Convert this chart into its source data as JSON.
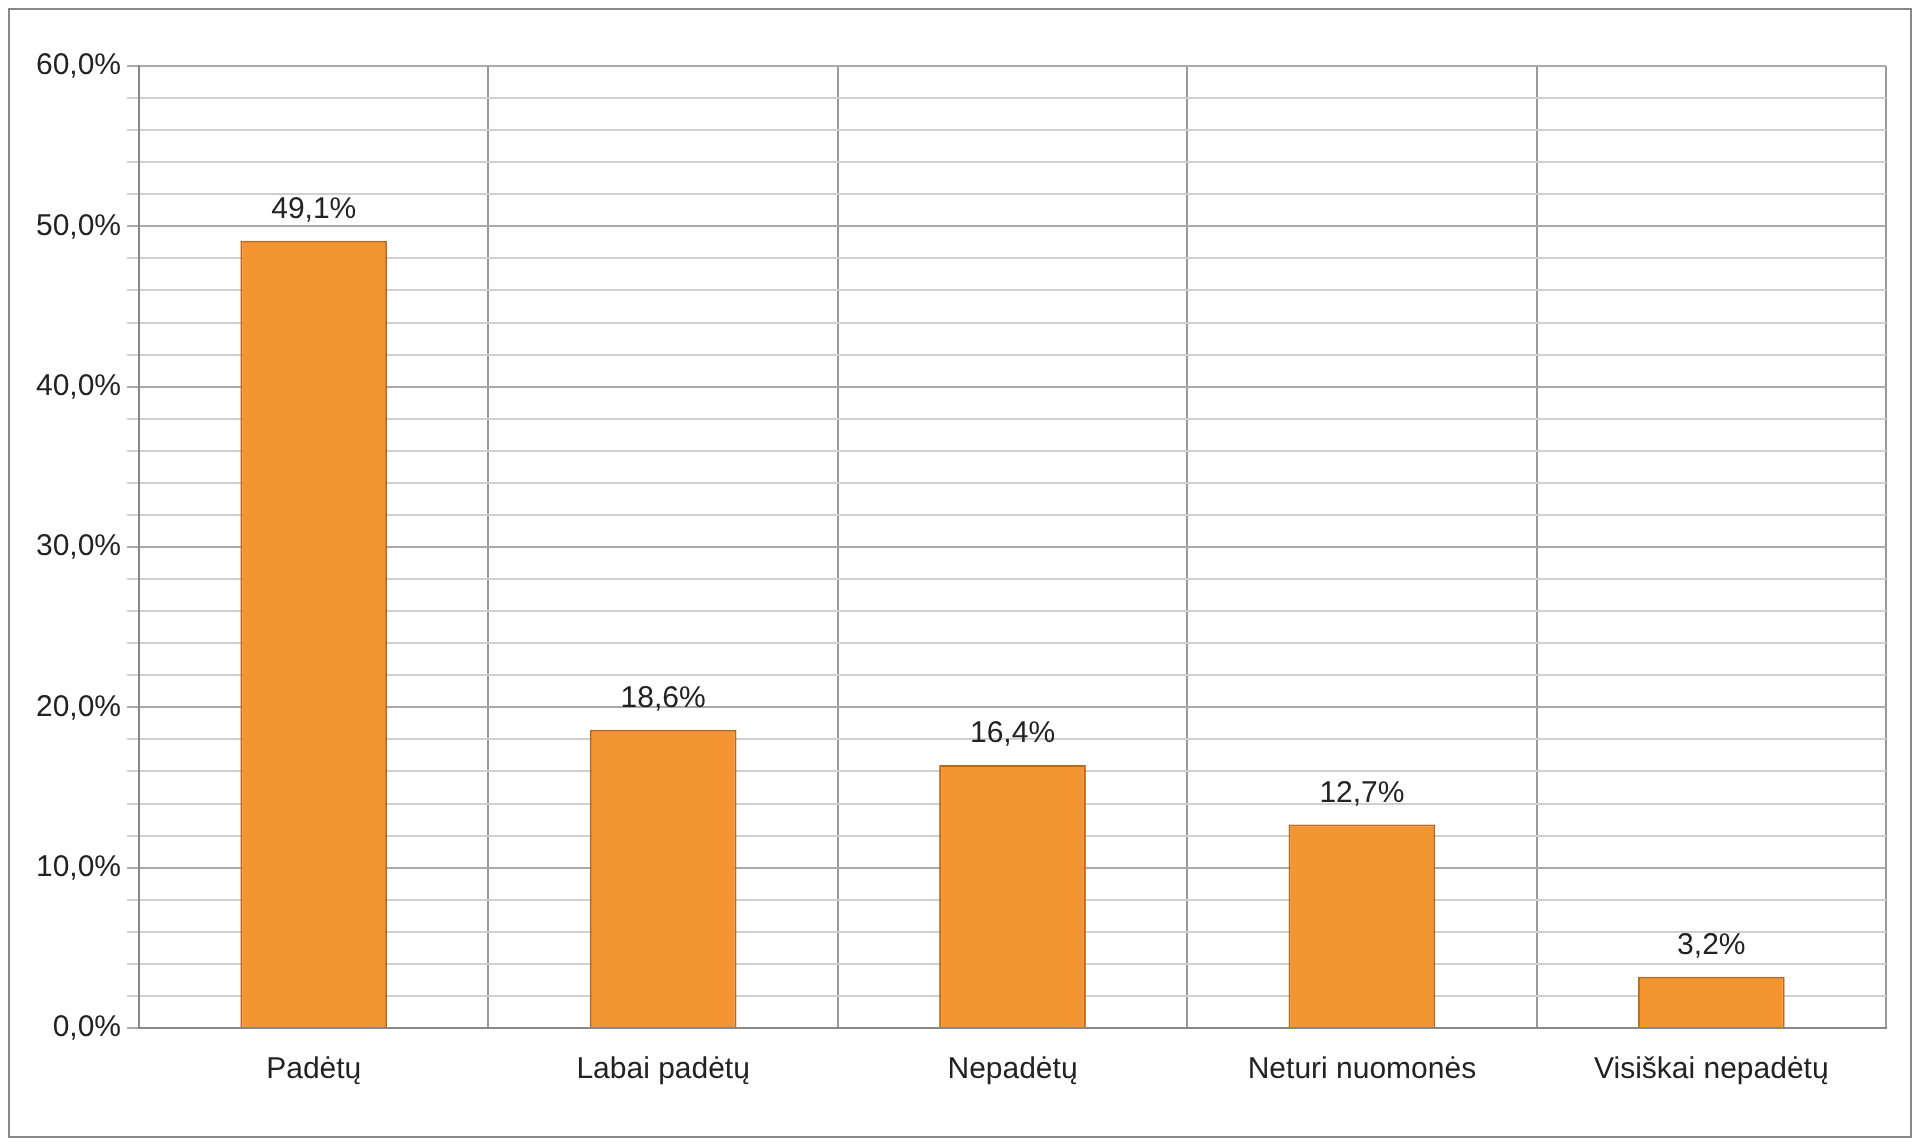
{
  "chart_data": {
    "type": "bar",
    "categories": [
      "Padėtų",
      "Labai padėtų",
      "Nepadėtų",
      "Neturi nuomonės",
      "Visiškai nepadėtų"
    ],
    "values": [
      49.1,
      18.6,
      16.4,
      12.7,
      3.2
    ],
    "value_labels": [
      "49,1%",
      "18,6%",
      "16,4%",
      "12,7%",
      "3,2%"
    ],
    "color": "#f39531",
    "ylim": [
      0,
      60
    ],
    "yticks": [
      {
        "value": 0,
        "label": "0,0%"
      },
      {
        "value": 2,
        "label": null
      },
      {
        "value": 4,
        "label": null
      },
      {
        "value": 6,
        "label": null
      },
      {
        "value": 8,
        "label": null
      },
      {
        "value": 10,
        "label": "10,0%"
      },
      {
        "value": 12,
        "label": null
      },
      {
        "value": 14,
        "label": null
      },
      {
        "value": 16,
        "label": null
      },
      {
        "value": 18,
        "label": null
      },
      {
        "value": 20,
        "label": "20,0%"
      },
      {
        "value": 22,
        "label": null
      },
      {
        "value": 24,
        "label": null
      },
      {
        "value": 26,
        "label": null
      },
      {
        "value": 28,
        "label": null
      },
      {
        "value": 30,
        "label": "30,0%"
      },
      {
        "value": 32,
        "label": null
      },
      {
        "value": 34,
        "label": null
      },
      {
        "value": 36,
        "label": null
      },
      {
        "value": 38,
        "label": null
      },
      {
        "value": 40,
        "label": "40,0%"
      },
      {
        "value": 42,
        "label": null
      },
      {
        "value": 44,
        "label": null
      },
      {
        "value": 46,
        "label": null
      },
      {
        "value": 48,
        "label": null
      },
      {
        "value": 50,
        "label": "50,0%"
      },
      {
        "value": 52,
        "label": null
      },
      {
        "value": 54,
        "label": null
      },
      {
        "value": 56,
        "label": null
      },
      {
        "value": 58,
        "label": null
      },
      {
        "value": 60,
        "label": "60,0%"
      }
    ],
    "grid": true
  }
}
